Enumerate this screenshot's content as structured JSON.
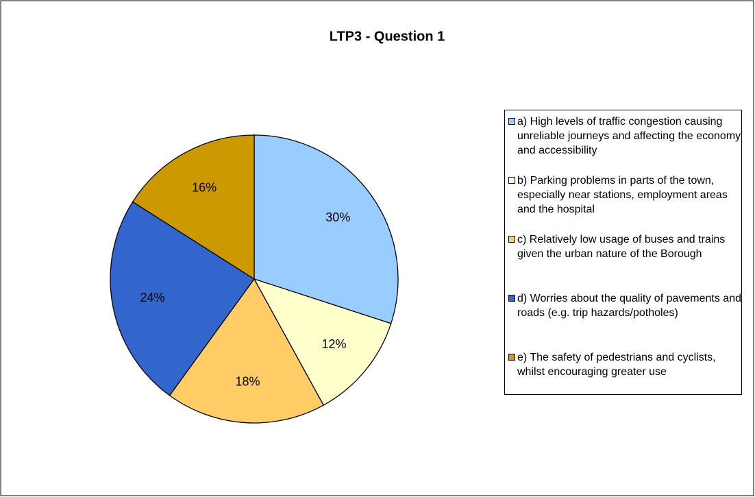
{
  "chart_data": {
    "type": "pie",
    "title": "LTP3 - Question 1",
    "categories": [
      "a) High levels of traffic congestion causing unreliable journeys and affecting the economy and accessibility",
      "b) Parking problems in parts of the town, especially near stations, employment areas and the hospital",
      "c) Relatively low usage of buses and trains given the urban nature of the Borough",
      "d) Worries about the quality of pavements and roads (e.g. trip hazards/potholes)",
      "e) The safety of pedestrians and cyclists, whilst encouraging greater use"
    ],
    "values": [
      30,
      12,
      18,
      24,
      16
    ],
    "value_labels": [
      "30%",
      "12%",
      "18%",
      "24%",
      "16%"
    ],
    "colors": [
      "#99ccff",
      "#ffffcc",
      "#ffcc66",
      "#3366cc",
      "#cc9900"
    ],
    "legend": "right"
  }
}
